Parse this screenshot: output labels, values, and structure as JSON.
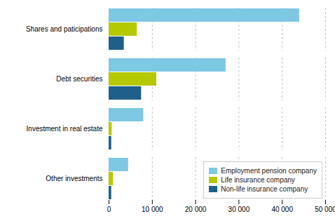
{
  "chart_data": {
    "type": "bar",
    "orientation": "horizontal",
    "categories": [
      "Other investments",
      "Investment in real estate",
      "Debt securities",
      "Shares and paticipations"
    ],
    "series": [
      {
        "name": "Employment pension company",
        "color": "#7ec8e3",
        "values": [
          4500,
          8000,
          27000,
          44000
        ]
      },
      {
        "name": "Life insurance company",
        "color": "#b5c900",
        "values": [
          1000,
          700,
          11000,
          6500
        ]
      },
      {
        "name": "Non-life insurance company",
        "color": "#1f5f8b",
        "values": [
          600,
          600,
          7500,
          3500
        ]
      }
    ],
    "xlim": [
      0,
      50000
    ],
    "xticks": [
      0,
      {
        "value": 10000,
        "label": "10 000"
      },
      {
        "value": 20000,
        "label": "20 000"
      },
      {
        "value": 30000,
        "label": "30 000"
      },
      {
        "value": 40000,
        "label": "40 000"
      },
      {
        "value": 50000,
        "label": "50 000"
      }
    ],
    "grid": true,
    "legend": "lower right"
  }
}
